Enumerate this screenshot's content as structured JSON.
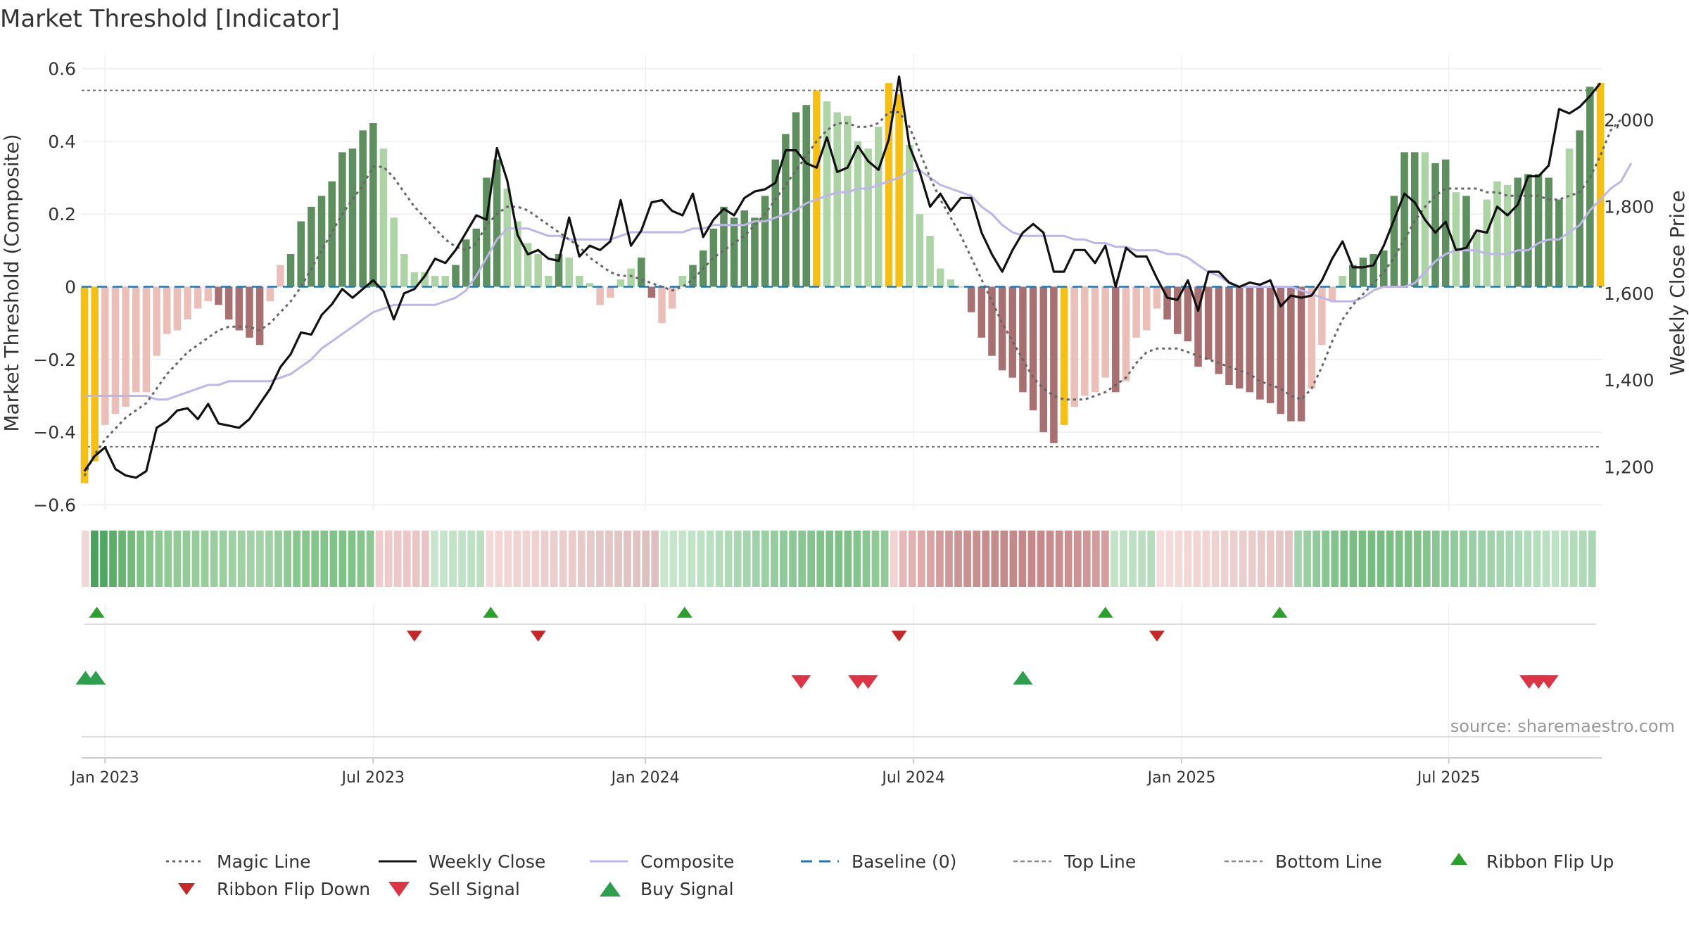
{
  "chart_data": {
    "type": "bar+line",
    "title": "Market Threshold [Indicator]",
    "ylabel_left": "Market Threshold (Composite)",
    "ylabel_right": "Weekly Close Price",
    "ylim_left": [
      -0.6,
      0.6
    ],
    "ylim_right": [
      1100,
      2150
    ],
    "yticks_left": [
      -0.6,
      -0.4,
      -0.2,
      0,
      0.2,
      0.4,
      0.6
    ],
    "ytick_labels_left": [
      "−0.6",
      "−0.4",
      "−0.2",
      "0",
      "0.2",
      "0.4",
      "0.6"
    ],
    "yticks_right": [
      1200,
      1400,
      1600,
      1800,
      2000
    ],
    "ytick_labels_right": [
      "1,200",
      "1,400",
      "1,600",
      "1,800",
      "2,000"
    ],
    "top_line": 0.54,
    "bottom_line": -0.44,
    "week_start": "2022-12-19",
    "xtick_labels": [
      "Jan 2023",
      "Jul 2023",
      "Jan 2024",
      "Jul 2024",
      "Jan 2025",
      "Jul 2025"
    ],
    "xtick_weeks": [
      2,
      28,
      54.4,
      80.4,
      106.4,
      132.3
    ],
    "composite_bars": [
      -0.54,
      -0.48,
      -0.38,
      -0.35,
      -0.33,
      -0.29,
      -0.29,
      -0.19,
      -0.13,
      -0.12,
      -0.09,
      -0.06,
      -0.04,
      -0.05,
      -0.09,
      -0.12,
      -0.14,
      -0.16,
      -0.04,
      0.06,
      0.09,
      0.18,
      0.22,
      0.25,
      0.29,
      0.37,
      0.38,
      0.43,
      0.45,
      0.38,
      0.19,
      0.09,
      0.04,
      0.04,
      0.03,
      0.03,
      0.06,
      0.13,
      0.16,
      0.3,
      0.35,
      0.27,
      0.18,
      0.12,
      0.09,
      0.03,
      0.09,
      0.08,
      0.03,
      0.01,
      -0.05,
      -0.03,
      0.02,
      0.05,
      0.08,
      -0.03,
      -0.1,
      -0.06,
      0.03,
      0.06,
      0.1,
      0.16,
      0.22,
      0.19,
      0.21,
      0.19,
      0.25,
      0.35,
      0.42,
      0.48,
      0.5,
      0.54,
      0.51,
      0.48,
      0.47,
      0.4,
      0.38,
      0.44,
      0.56,
      0.53,
      0.39,
      0.2,
      0.14,
      0.05,
      0.02,
      0,
      -0.07,
      -0.14,
      -0.19,
      -0.23,
      -0.25,
      -0.29,
      -0.34,
      -0.4,
      -0.43,
      -0.38,
      -0.33,
      -0.3,
      -0.29,
      -0.25,
      -0.29,
      -0.26,
      -0.14,
      -0.12,
      -0.06,
      -0.09,
      -0.13,
      -0.15,
      -0.22,
      -0.2,
      -0.24,
      -0.27,
      -0.28,
      -0.29,
      -0.31,
      -0.32,
      -0.35,
      -0.37,
      -0.37,
      -0.28,
      -0.16,
      -0.04,
      0.03,
      0.06,
      0.08,
      0.09,
      0.1,
      0.25,
      0.37,
      0.37,
      0.37,
      0.34,
      0.35,
      0.26,
      0.25,
      0.15,
      0.24,
      0.29,
      0.28,
      0.3,
      0.31,
      0.31,
      0.3,
      0.24,
      0.38,
      0.43,
      0.55,
      0.56
    ],
    "bar_tones": [
      "Y",
      "Y",
      "L",
      "L",
      "L",
      "L",
      "L",
      "L",
      "L",
      "L",
      "L",
      "L",
      "L",
      "D",
      "D",
      "D",
      "D",
      "D",
      "L",
      "L",
      "G",
      "G",
      "G",
      "G",
      "G",
      "G",
      "G",
      "G",
      "G",
      "P",
      "P",
      "P",
      "P",
      "P",
      "P",
      "P",
      "G",
      "G",
      "G",
      "G",
      "G",
      "P",
      "P",
      "P",
      "P",
      "P",
      "G",
      "P",
      "P",
      "P",
      "L",
      "L",
      "P",
      "P",
      "G",
      "D",
      "L",
      "L",
      "P",
      "G",
      "G",
      "G",
      "G",
      "G",
      "G",
      "G",
      "G",
      "G",
      "G",
      "G",
      "G",
      "Y",
      "P",
      "P",
      "P",
      "P",
      "P",
      "P",
      "Y",
      "Y",
      "P",
      "P",
      "P",
      "P",
      "P",
      "P",
      "D",
      "D",
      "D",
      "D",
      "D",
      "D",
      "D",
      "D",
      "D",
      "Y",
      "L",
      "L",
      "L",
      "L",
      "D",
      "L",
      "L",
      "L",
      "L",
      "D",
      "D",
      "D",
      "D",
      "D",
      "D",
      "D",
      "D",
      "D",
      "D",
      "D",
      "D",
      "D",
      "D",
      "L",
      "L",
      "L",
      "P",
      "G",
      "G",
      "G",
      "G",
      "G",
      "G",
      "G",
      "P",
      "G",
      "G",
      "P",
      "G",
      "P",
      "P",
      "P",
      "P",
      "G",
      "G",
      "G",
      "G",
      "G",
      "P",
      "G",
      "G",
      "Y",
      "Y",
      "Y"
    ],
    "weekly_close": [
      1190,
      1225,
      1245,
      1195,
      1180,
      1175,
      1190,
      1290,
      1305,
      1330,
      1335,
      1310,
      1345,
      1300,
      1295,
      1290,
      1310,
      1345,
      1380,
      1430,
      1460,
      1510,
      1505,
      1550,
      1575,
      1610,
      1590,
      1610,
      1630,
      1605,
      1540,
      1600,
      1610,
      1640,
      1680,
      1670,
      1700,
      1740,
      1780,
      1770,
      1935,
      1860,
      1735,
      1690,
      1700,
      1680,
      1675,
      1775,
      1685,
      1710,
      1700,
      1720,
      1815,
      1710,
      1745,
      1810,
      1815,
      1790,
      1780,
      1830,
      1730,
      1770,
      1795,
      1780,
      1820,
      1835,
      1840,
      1855,
      1930,
      1930,
      1900,
      1890,
      1960,
      1880,
      1890,
      1940,
      1905,
      1885,
      1955,
      2100,
      1940,
      1880,
      1800,
      1830,
      1790,
      1820,
      1820,
      1740,
      1690,
      1650,
      1700,
      1740,
      1760,
      1740,
      1650,
      1650,
      1700,
      1700,
      1670,
      1710,
      1615,
      1705,
      1685,
      1685,
      1635,
      1590,
      1585,
      1630,
      1560,
      1650,
      1650,
      1625,
      1615,
      1625,
      1620,
      1630,
      1570,
      1595,
      1590,
      1595,
      1630,
      1680,
      1720,
      1660,
      1660,
      1665,
      1710,
      1770,
      1830,
      1810,
      1770,
      1740,
      1765,
      1700,
      1705,
      1745,
      1740,
      1800,
      1780,
      1805,
      1870,
      1870,
      1895,
      2025,
      2015,
      2030,
      2055,
      2085
    ],
    "composite_line": [
      -0.3,
      -0.3,
      -0.3,
      -0.3,
      -0.3,
      -0.3,
      -0.3,
      -0.31,
      -0.31,
      -0.3,
      -0.29,
      -0.28,
      -0.27,
      -0.27,
      -0.26,
      -0.26,
      -0.26,
      -0.26,
      -0.26,
      -0.25,
      -0.24,
      -0.22,
      -0.2,
      -0.17,
      -0.15,
      -0.13,
      -0.11,
      -0.09,
      -0.07,
      -0.06,
      -0.05,
      -0.05,
      -0.05,
      -0.05,
      -0.05,
      -0.04,
      -0.03,
      -0.01,
      0.03,
      0.08,
      0.13,
      0.16,
      0.16,
      0.16,
      0.15,
      0.14,
      0.14,
      0.13,
      0.13,
      0.13,
      0.13,
      0.13,
      0.14,
      0.15,
      0.15,
      0.15,
      0.15,
      0.15,
      0.15,
      0.16,
      0.16,
      0.17,
      0.17,
      0.17,
      0.17,
      0.18,
      0.18,
      0.19,
      0.2,
      0.21,
      0.23,
      0.24,
      0.25,
      0.26,
      0.26,
      0.27,
      0.27,
      0.28,
      0.29,
      0.3,
      0.32,
      0.32,
      0.3,
      0.28,
      0.27,
      0.26,
      0.25,
      0.22,
      0.2,
      0.17,
      0.15,
      0.14,
      0.14,
      0.14,
      0.14,
      0.14,
      0.13,
      0.13,
      0.12,
      0.12,
      0.11,
      0.11,
      0.1,
      0.1,
      0.1,
      0.09,
      0.09,
      0.08,
      0.06,
      0.04,
      0.03,
      0.01,
      0.0,
      0.0,
      0.0,
      0.0,
      0.0,
      0.0,
      -0.01,
      -0.02,
      -0.03,
      -0.04,
      -0.04,
      -0.04,
      -0.03,
      -0.01,
      0.0,
      0.0,
      0.0,
      0.01,
      0.04,
      0.07,
      0.09,
      0.1,
      0.1,
      0.1,
      0.09,
      0.09,
      0.09,
      0.1,
      0.1,
      0.12,
      0.13,
      0.13,
      0.15,
      0.17,
      0.21,
      0.24,
      0.27,
      0.29,
      0.34
    ],
    "magic_line": [
      -0.52,
      -0.46,
      -0.42,
      -0.39,
      -0.36,
      -0.34,
      -0.32,
      -0.28,
      -0.24,
      -0.21,
      -0.18,
      -0.16,
      -0.14,
      -0.12,
      -0.11,
      -0.11,
      -0.11,
      -0.12,
      -0.1,
      -0.07,
      -0.04,
      0.0,
      0.05,
      0.1,
      0.15,
      0.2,
      0.24,
      0.28,
      0.33,
      0.33,
      0.3,
      0.26,
      0.22,
      0.19,
      0.16,
      0.13,
      0.11,
      0.1,
      0.12,
      0.17,
      0.2,
      0.22,
      0.22,
      0.21,
      0.19,
      0.17,
      0.15,
      0.13,
      0.11,
      0.08,
      0.06,
      0.04,
      0.03,
      0.03,
      0.02,
      0.01,
      0.0,
      -0.01,
      0.0,
      0.02,
      0.05,
      0.08,
      0.1,
      0.12,
      0.14,
      0.17,
      0.2,
      0.24,
      0.28,
      0.32,
      0.36,
      0.4,
      0.43,
      0.45,
      0.45,
      0.44,
      0.44,
      0.45,
      0.48,
      0.48,
      0.44,
      0.37,
      0.3,
      0.24,
      0.19,
      0.14,
      0.08,
      0.02,
      -0.04,
      -0.1,
      -0.15,
      -0.2,
      -0.25,
      -0.28,
      -0.3,
      -0.31,
      -0.31,
      -0.31,
      -0.3,
      -0.29,
      -0.27,
      -0.25,
      -0.21,
      -0.18,
      -0.17,
      -0.17,
      -0.17,
      -0.18,
      -0.19,
      -0.2,
      -0.21,
      -0.22,
      -0.23,
      -0.24,
      -0.26,
      -0.27,
      -0.28,
      -0.3,
      -0.31,
      -0.28,
      -0.22,
      -0.15,
      -0.09,
      -0.05,
      -0.02,
      0.01,
      0.04,
      0.08,
      0.13,
      0.18,
      0.22,
      0.25,
      0.27,
      0.27,
      0.27,
      0.27,
      0.26,
      0.26,
      0.25,
      0.25,
      0.25,
      0.25,
      0.24,
      0.24,
      0.25,
      0.26,
      0.3,
      0.36,
      0.43,
      0.46
    ],
    "ribbon_colors": [
      "#f0d8d8",
      "#49a35d",
      "#4ea85f",
      "#5aae68",
      "#66b571",
      "#72bb7b",
      "#7ec285",
      "#86c78c",
      "#8ec993",
      "#90ca95",
      "#92cb97",
      "#94cc99",
      "#96cd9a",
      "#98ce9c",
      "#9ace9e",
      "#9ccfa0",
      "#9ed0a1",
      "#a0d1a3",
      "#a2d2a5",
      "#a3d3a6",
      "#a0d1a3",
      "#98cd9c",
      "#8fca95",
      "#88c78e",
      "#86c78c",
      "#84c58b",
      "#82c489",
      "#80c387",
      "#7ec285",
      "#80c387",
      "#86c68c",
      "#8cc892",
      "#f0cccc",
      "#eecaca",
      "#ecc8c8",
      "#ebc7c7",
      "#e9c6c6",
      "#e8c4c4",
      "#c8e6cd",
      "#c5e5ca",
      "#c3e3c8",
      "#c0e2c6",
      "#bde1c3",
      "#bae0c1",
      "#f5d9d9",
      "#f3d7d7",
      "#f2d5d5",
      "#f0d4d4",
      "#efd2d2",
      "#eed1d1",
      "#ecd0d0",
      "#ebcece",
      "#eacdcd",
      "#e8cbcb",
      "#e7caca",
      "#e6c9c9",
      "#e4c7c7",
      "#e3c6c6",
      "#e2c5c5",
      "#e0c3c3",
      "#dfc2c2",
      "#ddc0c0",
      "#dcbfbf",
      "#c9e7ce",
      "#c6e6cc",
      "#c4e5ca",
      "#c1e3c7",
      "#bde1c3",
      "#b8dfbf",
      "#b3dcbb",
      "#aedab6",
      "#a9d7b2",
      "#a4d5ad",
      "#9fd2a9",
      "#9ad0a4",
      "#95cd9f",
      "#90ca9a",
      "#8cc896",
      "#88c692",
      "#84c48e",
      "#81c28b",
      "#7fc189",
      "#7ec088",
      "#80c18a",
      "#84c48e",
      "#89c692",
      "#8ec996",
      "#92cb99",
      "#f3d2d2",
      "#e8b8b8",
      "#e3b1b1",
      "#deaaaa",
      "#d9a3a3",
      "#d49d9d",
      "#d09898",
      "#cd9494",
      "#cb9191",
      "#c98f8f",
      "#c78d8d",
      "#c68b8b",
      "#c58a8a",
      "#c48989",
      "#c48888",
      "#c58989",
      "#c68a8a",
      "#c78b8b",
      "#c98e8e",
      "#cb9090",
      "#cd9393",
      "#d09797",
      "#d39b9b",
      "#d69f9f",
      "#c3e3c8",
      "#c0e1c5",
      "#bde0c3",
      "#bbdfc0",
      "#b8ddbe",
      "#f7dddd",
      "#f5dbdb",
      "#f4d9d9",
      "#f2d7d7",
      "#f1d6d6",
      "#f0d4d4",
      "#eed2d2",
      "#edd1d1",
      "#ebcfcf",
      "#eacdcd",
      "#e9cccc",
      "#e7caca",
      "#e6c8c8",
      "#e5c7c7",
      "#e3c5c5",
      "#a3d4ad",
      "#99cfa3",
      "#90ca9a",
      "#88c692",
      "#82c28c",
      "#7dc087",
      "#7abe84",
      "#78bd82",
      "#77bc81",
      "#78bd82",
      "#79bd83",
      "#7bbf85",
      "#7ec088",
      "#81c28b",
      "#85c48f",
      "#89c693",
      "#8dc897",
      "#91ca9b",
      "#95cd9f",
      "#99cfa3",
      "#9dd1a7",
      "#a1d3aa",
      "#a5d5ae",
      "#a9d7b2",
      "#addab6",
      "#b1dcba",
      "#b5debd",
      "#b9e0c1",
      "#bde2c5",
      "#b8dfc0",
      "#b3dcbb",
      "#aedab6",
      "#a9d7b2"
    ],
    "ribbon_flip_up": [
      1.2,
      39.4,
      58.2,
      99.0,
      115.9
    ],
    "ribbon_flip_down": [
      32.0,
      44.0,
      79.0,
      104.0
    ],
    "buy_signals": [
      0.1,
      1.1,
      91.0
    ],
    "sell_signals": [
      69.5,
      75.0,
      76.0,
      140.1,
      141.0,
      142.0
    ],
    "legend": {
      "magic_line": "Magic Line",
      "weekly_close": "Weekly Close",
      "composite": "Composite",
      "baseline": "Baseline (0)",
      "top_line": "Top Line",
      "bottom_line": "Bottom Line",
      "ribbon_flip_up": "Ribbon Flip Up",
      "ribbon_flip_down": "Ribbon Flip Down",
      "sell_signal": "Sell Signal",
      "buy_signal": "Buy Signal"
    },
    "source": "source: sharemaestro.com",
    "colors": {
      "green_dark": "#5e8f5e",
      "green_light": "#acd4a4",
      "red_dark": "#a87070",
      "red_light": "#ebbfb8",
      "highlight": "#f5bf13",
      "weekly_close": "#111111",
      "composite_line": "#bcb6ea",
      "magic_line": "#666666",
      "baseline": "#1f77b4",
      "flip_up": "#2ca02c",
      "flip_down": "#c62828",
      "buy": "#2e9e4f",
      "sell": "#dc3545"
    }
  }
}
